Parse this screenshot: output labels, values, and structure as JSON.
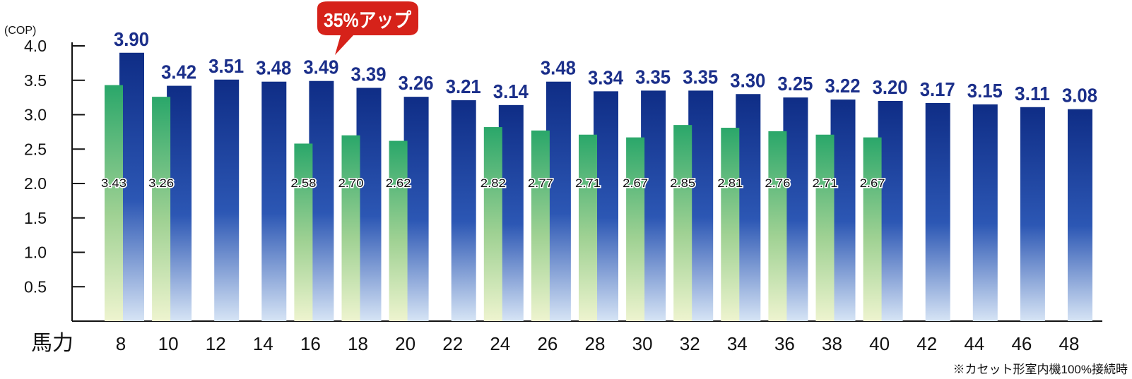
{
  "chart_data": {
    "type": "bar",
    "y_unit_label": "(COP)",
    "x_axis_label": "馬力",
    "categories": [
      "8",
      "10",
      "12",
      "14",
      "16",
      "18",
      "20",
      "22",
      "24",
      "26",
      "28",
      "30",
      "32",
      "34",
      "36",
      "38",
      "40",
      "42",
      "44",
      "46",
      "48"
    ],
    "series": [
      {
        "values": [
          3.9,
          3.42,
          3.51,
          3.48,
          3.49,
          3.39,
          3.26,
          3.21,
          3.14,
          3.48,
          3.34,
          3.35,
          3.35,
          3.3,
          3.25,
          3.22,
          3.2,
          3.17,
          3.15,
          3.11,
          3.08
        ],
        "labels": [
          "3.90",
          "3.42",
          "3.51",
          "3.48",
          "3.49",
          "3.39",
          "3.26",
          "3.21",
          "3.14",
          "3.48",
          "3.34",
          "3.35",
          "3.35",
          "3.30",
          "3.25",
          "3.22",
          "3.20",
          "3.17",
          "3.15",
          "3.11",
          "3.08"
        ]
      },
      {
        "values": [
          3.43,
          3.26,
          null,
          null,
          2.58,
          2.7,
          2.62,
          null,
          2.82,
          2.77,
          2.71,
          2.67,
          2.85,
          2.81,
          2.76,
          2.71,
          2.67,
          null,
          null,
          null,
          null
        ],
        "labels": [
          "3.43",
          "3.26",
          "",
          "",
          "2.58",
          "2.70",
          "2.62",
          "",
          "2.82",
          "2.77",
          "2.71",
          "2.67",
          "2.85",
          "2.81",
          "2.76",
          "2.71",
          "2.67",
          "",
          "",
          "",
          ""
        ]
      }
    ],
    "ylim": [
      0,
      4.0
    ],
    "yticks": [
      "0.5",
      "1.0",
      "1.5",
      "2.0",
      "2.5",
      "3.0",
      "3.5",
      "4.0"
    ],
    "ytick_values": [
      0.5,
      1.0,
      1.5,
      2.0,
      2.5,
      3.0,
      3.5,
      4.0
    ],
    "callout": {
      "text": "35%アップ",
      "category": "16"
    },
    "footnote": "※カセット形室内機100%接続時",
    "colors": {
      "blue_top": "#0f2d86",
      "blue_bottom": "#d6e4f5",
      "green_top": "#2aa76a",
      "green_bottom": "#e6f1c9",
      "callout": "#d6221a",
      "label_blue": "#1b2f8a"
    }
  }
}
